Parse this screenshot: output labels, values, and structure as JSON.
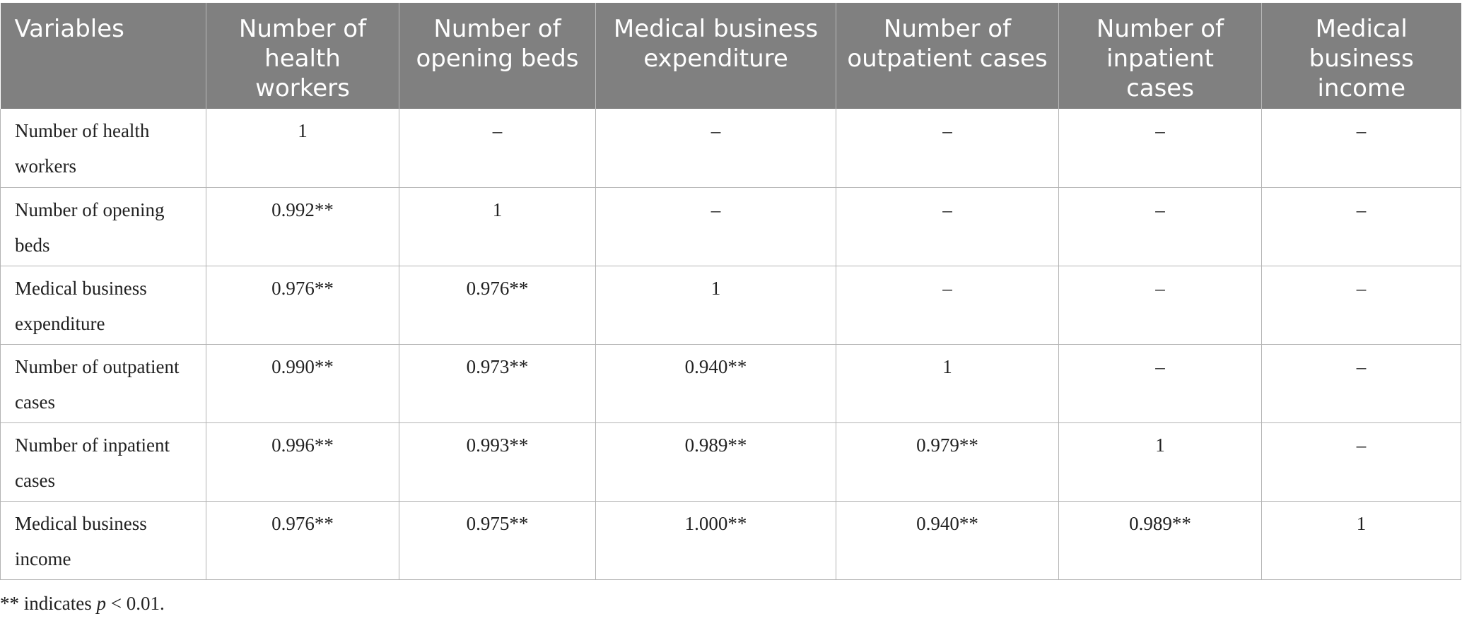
{
  "table": {
    "headers": [
      "Variables",
      "Number of health workers",
      "Number of opening beds",
      "Medical business expenditure",
      "Number of outpatient cases",
      "Number of inpatient cases",
      "Medical business income"
    ],
    "rows": [
      [
        "Number of health workers",
        "1",
        "–",
        "–",
        "–",
        "–",
        "–"
      ],
      [
        "Number of opening beds",
        "0.992**",
        "1",
        "–",
        "–",
        "–",
        "–"
      ],
      [
        "Medical business expenditure",
        "0.976**",
        "0.976**",
        "1",
        "–",
        "–",
        "–"
      ],
      [
        "Number of outpatient cases",
        "0.990**",
        "0.973**",
        "0.940**",
        "1",
        "–",
        "–"
      ],
      [
        "Number of inpatient cases",
        "0.996**",
        "0.993**",
        "0.989**",
        "0.979**",
        "1",
        "–"
      ],
      [
        "Medical business income",
        "0.976**",
        "0.975**",
        "1.000**",
        "0.940**",
        "0.989**",
        "1"
      ]
    ]
  },
  "footnote": {
    "prefix": "** indicates ",
    "variable": "p",
    "suffix": " < 0.01."
  }
}
